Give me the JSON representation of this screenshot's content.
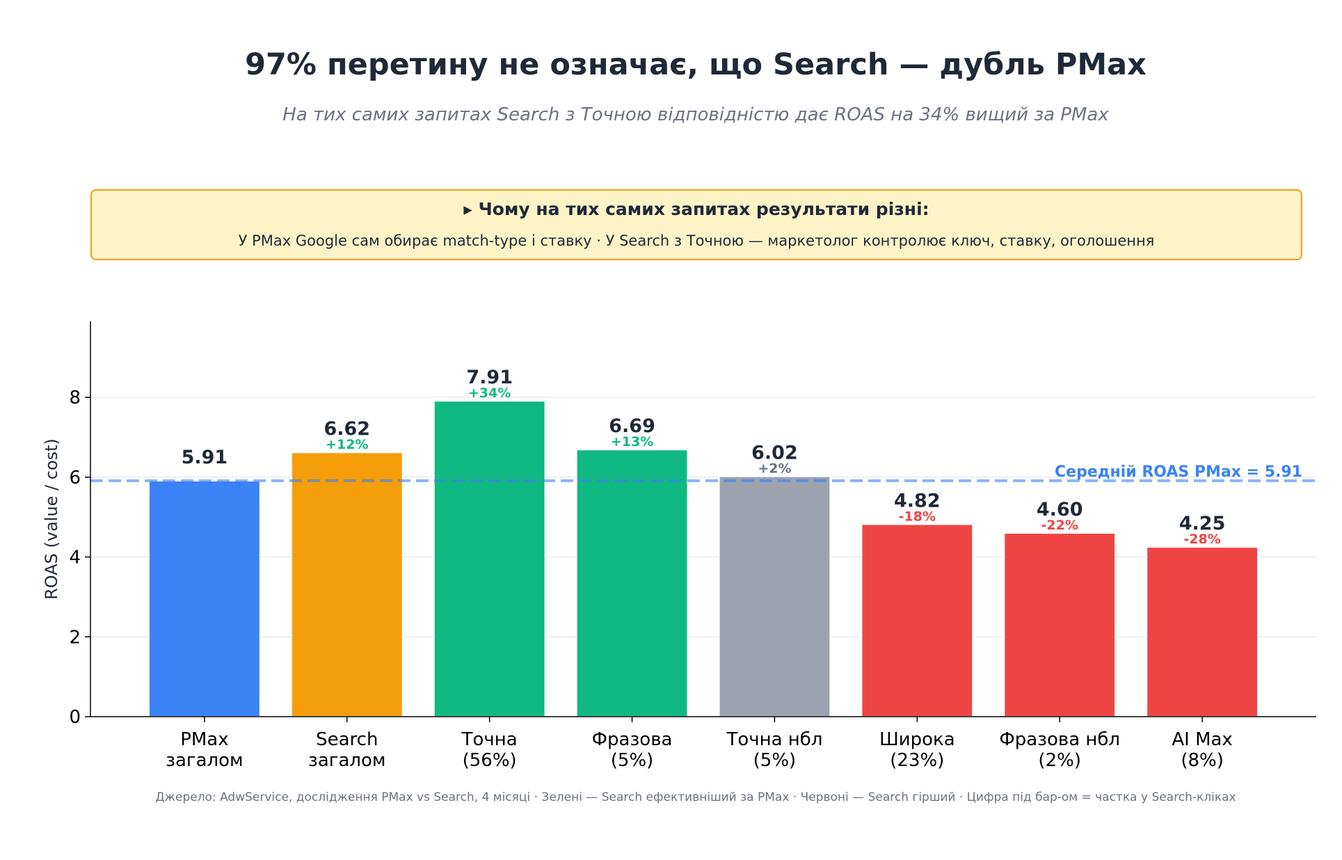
{
  "title": "97% перетину не означає, що Search — дубль PMax",
  "subtitle": "На тих самих запитах Search з Точною відповідністю дає ROAS на 34% вищий за PMax",
  "callout": {
    "heading": "▸ Чому на тих самих запитах результати різні:",
    "body": "У PMax Google сам обирає match-type і ставку · У Search з Точною — маркетолог контролює ключ, ставку, оголошення"
  },
  "source": "Джерело: AdwService, дослідження PMax vs Search, 4 місяці · Зелені — Search ефективніший за PMax · Червоні — Search гірший · Цифра під бар-ом = частка у Search-кліках",
  "chart_data": {
    "type": "bar",
    "categories": [
      [
        "PMax",
        "загалом"
      ],
      [
        "Search",
        "загалом"
      ],
      [
        "Точна",
        "(56%)"
      ],
      [
        "Фразова",
        "(5%)"
      ],
      [
        "Точна нбл",
        "(5%)"
      ],
      [
        "Широка",
        "(23%)"
      ],
      [
        "Фразова нбл",
        "(2%)"
      ],
      [
        "AI Max",
        "(8%)"
      ]
    ],
    "values": [
      5.91,
      6.62,
      7.91,
      6.69,
      6.02,
      4.82,
      4.6,
      4.25
    ],
    "value_labels": [
      "5.91",
      "6.62",
      "7.91",
      "6.69",
      "6.02",
      "4.82",
      "4.60",
      "4.25"
    ],
    "delta_labels": [
      "",
      "+12%",
      "+34%",
      "+13%",
      "+2%",
      "-18%",
      "-22%",
      "-28%"
    ],
    "bar_colors": [
      "#3b82f6",
      "#f59e0b",
      "#10b981",
      "#10b981",
      "#9ca3af",
      "#ef4444",
      "#ef4444",
      "#ef4444"
    ],
    "delta_colors": [
      "",
      "#10b981",
      "#10b981",
      "#10b981",
      "#6b7280",
      "#ef4444",
      "#ef4444",
      "#ef4444"
    ],
    "ylabel": "ROAS (value / cost)",
    "xlabel": "",
    "ylim": [
      0,
      9.9
    ],
    "yticks": [
      0,
      2,
      4,
      6,
      8
    ],
    "grid": true,
    "reference_line": {
      "value": 5.91,
      "label": "Середній ROAS PMax = 5.91",
      "color": "#3b82f6"
    }
  }
}
